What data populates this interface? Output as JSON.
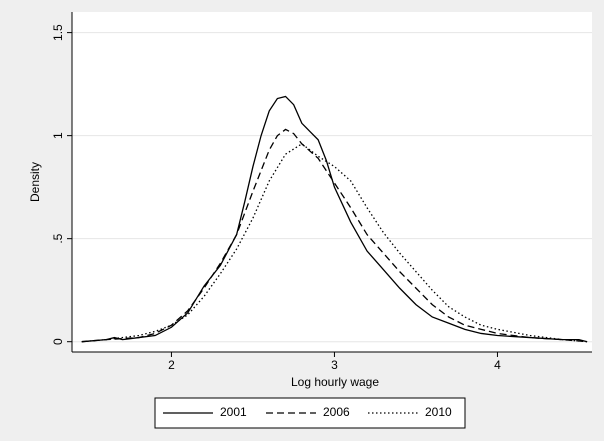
{
  "chart_data": {
    "type": "line",
    "x_label": "Log hourly wage",
    "y_label": "Density",
    "xlim": [
      1.39,
      4.58
    ],
    "xticks": [
      2,
      3,
      4
    ],
    "ylim": [
      -0.05,
      1.6
    ],
    "yticks": [
      0,
      {
        "value": 0.5,
        "label": ".5"
      },
      1,
      1.5
    ],
    "grid": true,
    "legend": "bottom",
    "series": [
      {
        "name": "2001",
        "color": "#000000",
        "line_style": "solid",
        "x": [
          1.45,
          1.6,
          1.65,
          1.7,
          1.8,
          1.9,
          2.0,
          2.1,
          2.2,
          2.3,
          2.4,
          2.45,
          2.5,
          2.55,
          2.6,
          2.65,
          2.7,
          2.75,
          2.8,
          2.85,
          2.9,
          2.95,
          3.0,
          3.1,
          3.2,
          3.3,
          3.4,
          3.5,
          3.6,
          3.7,
          3.8,
          3.9,
          4.0,
          4.2,
          4.4,
          4.5,
          4.55
        ],
        "values": [
          0,
          0.01,
          0.02,
          0.01,
          0.02,
          0.03,
          0.07,
          0.14,
          0.27,
          0.37,
          0.52,
          0.68,
          0.85,
          1.0,
          1.12,
          1.18,
          1.19,
          1.15,
          1.06,
          1.02,
          0.98,
          0.88,
          0.75,
          0.58,
          0.44,
          0.35,
          0.26,
          0.18,
          0.12,
          0.09,
          0.06,
          0.04,
          0.03,
          0.02,
          0.01,
          0.01,
          0
        ]
      },
      {
        "name": "2006",
        "color": "#000000",
        "line_style": "dashed",
        "x": [
          1.45,
          1.6,
          1.8,
          1.9,
          2.0,
          2.1,
          2.2,
          2.3,
          2.4,
          2.5,
          2.6,
          2.65,
          2.7,
          2.75,
          2.8,
          2.9,
          3.0,
          3.1,
          3.2,
          3.3,
          3.4,
          3.5,
          3.6,
          3.7,
          3.8,
          3.9,
          4.0,
          4.2,
          4.4,
          4.55
        ],
        "values": [
          0,
          0.01,
          0.02,
          0.04,
          0.08,
          0.15,
          0.26,
          0.38,
          0.52,
          0.73,
          0.93,
          1.0,
          1.03,
          1.01,
          0.96,
          0.89,
          0.77,
          0.65,
          0.52,
          0.43,
          0.34,
          0.26,
          0.18,
          0.12,
          0.08,
          0.06,
          0.04,
          0.02,
          0.01,
          0
        ]
      },
      {
        "name": "2010",
        "color": "#000000",
        "line_style": "dotted",
        "x": [
          1.45,
          1.6,
          1.8,
          1.9,
          2.0,
          2.1,
          2.2,
          2.3,
          2.4,
          2.5,
          2.6,
          2.7,
          2.8,
          2.9,
          3.0,
          3.1,
          3.2,
          3.3,
          3.4,
          3.5,
          3.6,
          3.7,
          3.8,
          3.9,
          4.0,
          4.2,
          4.4,
          4.55
        ],
        "values": [
          0,
          0.01,
          0.03,
          0.05,
          0.08,
          0.13,
          0.22,
          0.33,
          0.45,
          0.6,
          0.78,
          0.91,
          0.96,
          0.9,
          0.85,
          0.78,
          0.65,
          0.53,
          0.43,
          0.34,
          0.25,
          0.17,
          0.12,
          0.08,
          0.06,
          0.03,
          0.01,
          0
        ]
      }
    ]
  }
}
